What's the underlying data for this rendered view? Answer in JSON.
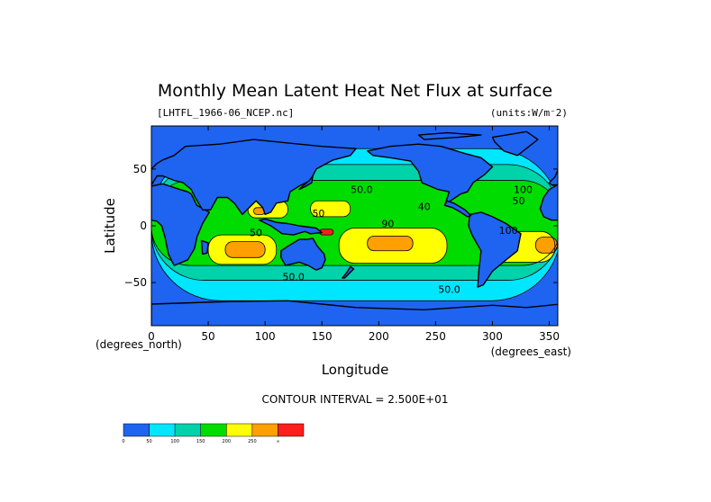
{
  "chart_data": {
    "type": "heatmap",
    "title": "Monthly Mean Latent Heat Net Flux at surface",
    "file_label": "[LHTFL_1966-06_NCEP.nc]",
    "units_label": "(units:W/m⁻2)",
    "xlabel": "Longitude",
    "ylabel": "Latitude",
    "x_units": "(degrees_east)",
    "y_units": "(degrees_north)",
    "xlim": [
      0,
      357.5
    ],
    "ylim": [
      -88,
      88
    ],
    "x_ticks": [
      0,
      50,
      100,
      150,
      200,
      250,
      300,
      350
    ],
    "y_ticks": [
      50,
      0,
      -50
    ],
    "contour_interval_text": "CONTOUR INTERVAL = 2.500E+01",
    "contour_labels": [
      {
        "text": "50.0",
        "lon": 185,
        "lat": 29
      },
      {
        "text": "50.0",
        "lon": 125,
        "lat": -48
      },
      {
        "text": "50.0",
        "lon": 262,
        "lat": -59
      },
      {
        "text": "50",
        "lon": 92,
        "lat": -9
      },
      {
        "text": "50",
        "lon": 147,
        "lat": 8
      },
      {
        "text": "100",
        "lon": 327,
        "lat": 29
      },
      {
        "text": "50",
        "lon": 323,
        "lat": 19
      },
      {
        "text": "40",
        "lon": 240,
        "lat": 14
      },
      {
        "text": "90",
        "lon": 208,
        "lat": -1
      },
      {
        "text": "100",
        "lon": 314,
        "lat": -7
      }
    ],
    "colorbar": {
      "levels": [
        0,
        50,
        100,
        150,
        200,
        250
      ],
      "tick_labels": [
        "0",
        "50",
        "100",
        "150",
        "200",
        "250",
        "∞"
      ],
      "colors": [
        "#1e64f0",
        "#00e6ff",
        "#00d2aa",
        "#00dc00",
        "#ffff00",
        "#ffa000",
        "#ff1e1e"
      ]
    },
    "fields": [
      {
        "level": 1,
        "lon": [
          0,
          360
        ],
        "lat": [
          -66,
          68
        ]
      },
      {
        "level": 2,
        "lon": [
          0,
          360
        ],
        "lat": [
          -48,
          54
        ]
      },
      {
        "level": 3,
        "lon": [
          0,
          360
        ],
        "lat": [
          -35,
          40
        ]
      },
      {
        "level": 4,
        "lon": [
          50,
          110
        ],
        "lat": [
          -34,
          -8
        ]
      },
      {
        "level": 4,
        "lon": [
          165,
          260
        ],
        "lat": [
          -33,
          -2
        ]
      },
      {
        "level": 4,
        "lon": [
          295,
          355
        ],
        "lat": [
          -32,
          -5
        ]
      },
      {
        "level": 4,
        "lon": [
          85,
          120
        ],
        "lat": [
          7,
          22
        ]
      },
      {
        "level": 4,
        "lon": [
          140,
          175
        ],
        "lat": [
          8,
          22
        ]
      },
      {
        "level": 5,
        "lon": [
          65,
          100
        ],
        "lat": [
          -28,
          -14
        ]
      },
      {
        "level": 5,
        "lon": [
          190,
          230
        ],
        "lat": [
          -22,
          -9
        ]
      },
      {
        "level": 5,
        "lon": [
          338,
          357
        ],
        "lat": [
          -24,
          -10
        ]
      },
      {
        "level": 5,
        "lon": [
          90,
          100
        ],
        "lat": [
          10,
          16
        ]
      },
      {
        "level": 6,
        "lon": [
          148,
          160
        ],
        "lat": [
          -8,
          -3
        ]
      }
    ],
    "land": [
      {
        "name": "north-america",
        "points": [
          [
            190,
            66
          ],
          [
            210,
            70
          ],
          [
            235,
            72
          ],
          [
            255,
            70
          ],
          [
            275,
            64
          ],
          [
            290,
            60
          ],
          [
            300,
            52
          ],
          [
            293,
            45
          ],
          [
            283,
            38
          ],
          [
            278,
            30
          ],
          [
            272,
            28
          ],
          [
            263,
            22
          ],
          [
            258,
            18
          ],
          [
            262,
            30
          ],
          [
            252,
            32
          ],
          [
            238,
            38
          ],
          [
            235,
            48
          ],
          [
            228,
            57
          ],
          [
            210,
            60
          ],
          [
            195,
            62
          ]
        ]
      },
      {
        "name": "greenland",
        "points": [
          [
            300,
            78
          ],
          [
            330,
            83
          ],
          [
            340,
            76
          ],
          [
            322,
            62
          ],
          [
            310,
            66
          ],
          [
            302,
            74
          ]
        ]
      },
      {
        "name": "south-america",
        "points": [
          [
            280,
            10
          ],
          [
            290,
            12
          ],
          [
            300,
            8
          ],
          [
            312,
            2
          ],
          [
            325,
            -7
          ],
          [
            322,
            -22
          ],
          [
            312,
            -30
          ],
          [
            300,
            -40
          ],
          [
            292,
            -52
          ],
          [
            287,
            -54
          ],
          [
            288,
            -40
          ],
          [
            290,
            -22
          ],
          [
            282,
            -8
          ],
          [
            279,
            0
          ]
        ]
      },
      {
        "name": "central-america",
        "points": [
          [
            258,
            18
          ],
          [
            265,
            16
          ],
          [
            272,
            12
          ],
          [
            278,
            8
          ],
          [
            281,
            9
          ],
          [
            276,
            14
          ],
          [
            266,
            20
          ],
          [
            260,
            22
          ]
        ]
      },
      {
        "name": "africa-west",
        "points": [
          [
            0,
            35
          ],
          [
            10,
            37
          ],
          [
            25,
            32
          ],
          [
            32,
            30
          ],
          [
            35,
            28
          ],
          [
            40,
            18
          ],
          [
            51,
            12
          ],
          [
            45,
            2
          ],
          [
            40,
            -10
          ],
          [
            38,
            -20
          ],
          [
            32,
            -30
          ],
          [
            20,
            -35
          ],
          [
            15,
            -25
          ],
          [
            12,
            -10
          ],
          [
            9,
            0
          ],
          [
            5,
            4
          ],
          [
            0,
            5
          ]
        ]
      },
      {
        "name": "africa-west-bulge",
        "points": [
          [
            342,
            15
          ],
          [
            345,
            25
          ],
          [
            350,
            32
          ],
          [
            357,
            36
          ],
          [
            360,
            36
          ],
          [
            360,
            5
          ],
          [
            352,
            5
          ],
          [
            345,
            8
          ]
        ]
      },
      {
        "name": "eurasia",
        "points": [
          [
            0,
            36
          ],
          [
            0,
            50
          ],
          [
            5,
            55
          ],
          [
            10,
            58
          ],
          [
            20,
            62
          ],
          [
            30,
            70
          ],
          [
            60,
            72
          ],
          [
            90,
            76
          ],
          [
            120,
            73
          ],
          [
            150,
            70
          ],
          [
            180,
            68
          ],
          [
            175,
            62
          ],
          [
            160,
            58
          ],
          [
            145,
            50
          ],
          [
            140,
            40
          ],
          [
            130,
            35
          ],
          [
            122,
            30
          ],
          [
            120,
            22
          ],
          [
            110,
            20
          ],
          [
            105,
            12
          ],
          [
            100,
            10
          ],
          [
            98,
            16
          ],
          [
            92,
            22
          ],
          [
            80,
            10
          ],
          [
            73,
            20
          ],
          [
            67,
            25
          ],
          [
            58,
            25
          ],
          [
            52,
            14
          ],
          [
            45,
            14
          ],
          [
            38,
            26
          ],
          [
            35,
            32
          ],
          [
            28,
            38
          ],
          [
            20,
            40
          ],
          [
            10,
            44
          ],
          [
            5,
            44
          ]
        ]
      },
      {
        "name": "europe-west",
        "points": [
          [
            350,
            38
          ],
          [
            355,
            43
          ],
          [
            358,
            50
          ],
          [
            360,
            52
          ],
          [
            360,
            36
          ],
          [
            352,
            36
          ]
        ]
      },
      {
        "name": "indonesia",
        "points": [
          [
            95,
            5
          ],
          [
            105,
            0
          ],
          [
            115,
            -7
          ],
          [
            125,
            -8
          ],
          [
            135,
            -5
          ],
          [
            140,
            -7
          ],
          [
            150,
            -6
          ],
          [
            145,
            -2
          ],
          [
            130,
            0
          ],
          [
            120,
            2
          ],
          [
            110,
            3
          ],
          [
            100,
            6
          ]
        ]
      },
      {
        "name": "australia",
        "points": [
          [
            114,
            -22
          ],
          [
            120,
            -18
          ],
          [
            130,
            -12
          ],
          [
            137,
            -12
          ],
          [
            142,
            -11
          ],
          [
            146,
            -18
          ],
          [
            152,
            -25
          ],
          [
            153,
            -30
          ],
          [
            150,
            -37
          ],
          [
            145,
            -39
          ],
          [
            138,
            -35
          ],
          [
            130,
            -32
          ],
          [
            118,
            -35
          ],
          [
            114,
            -28
          ]
        ]
      },
      {
        "name": "madagascar",
        "points": [
          [
            44,
            -13
          ],
          [
            50,
            -15
          ],
          [
            49,
            -24
          ],
          [
            45,
            -25
          ]
        ]
      },
      {
        "name": "japan",
        "points": [
          [
            130,
            32
          ],
          [
            136,
            35
          ],
          [
            141,
            38
          ],
          [
            142,
            44
          ],
          [
            139,
            40
          ],
          [
            132,
            34
          ]
        ]
      },
      {
        "name": "new-zealand",
        "points": [
          [
            168,
            -46
          ],
          [
            172,
            -41
          ],
          [
            175,
            -36
          ],
          [
            178,
            -38
          ],
          [
            174,
            -42
          ],
          [
            170,
            -46
          ]
        ]
      },
      {
        "name": "antarctica",
        "points": [
          [
            0,
            -69
          ],
          [
            60,
            -67
          ],
          [
            120,
            -66
          ],
          [
            180,
            -72
          ],
          [
            240,
            -74
          ],
          [
            300,
            -70
          ],
          [
            330,
            -72
          ],
          [
            360,
            -69
          ],
          [
            360,
            -90
          ],
          [
            0,
            -90
          ]
        ]
      },
      {
        "name": "arctic-islands",
        "points": [
          [
            240,
            76
          ],
          [
            270,
            78
          ],
          [
            290,
            80
          ],
          [
            260,
            82
          ],
          [
            235,
            80
          ]
        ]
      }
    ]
  }
}
